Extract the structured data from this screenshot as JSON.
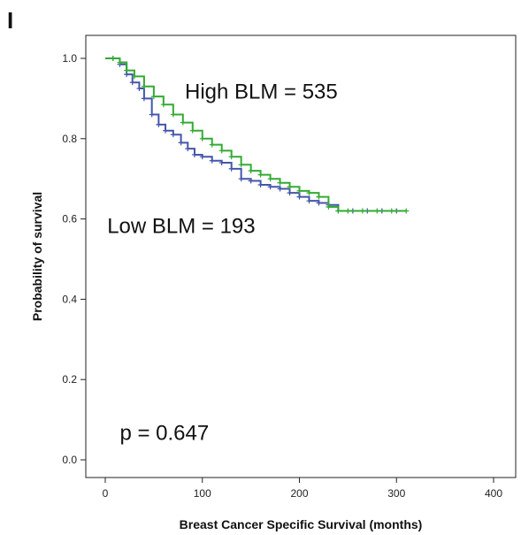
{
  "panel_label": "I",
  "chart_data": {
    "type": "line",
    "subtype": "kaplan-meier",
    "title": "",
    "xlabel": "Breast Cancer Specific Survival (months)",
    "ylabel": "Probability of survival",
    "xlim": [
      -20,
      400
    ],
    "ylim": [
      -0.02,
      1.05
    ],
    "xticks": [
      0,
      100,
      200,
      300,
      400
    ],
    "xtick_labels": [
      "0",
      "100",
      "200",
      "300",
      "400"
    ],
    "yticks": [
      0.0,
      0.2,
      0.4,
      0.6,
      0.8,
      1.0
    ],
    "ytick_labels": [
      "0.0",
      "0.2",
      "0.4",
      "0.6",
      "0.8",
      "1.0"
    ],
    "grid": false,
    "annotations": [
      {
        "text": "High BLM = 535",
        "x": 82,
        "y": 0.9,
        "color": "#111111"
      },
      {
        "text": "Low BLM = 193",
        "x": 2,
        "y": 0.565,
        "color": "#111111"
      },
      {
        "text": "p = 0.647",
        "x": 15,
        "y": 0.05,
        "color": "#111111"
      }
    ],
    "series": [
      {
        "color": "#4455aa",
        "x": [
          0,
          8,
          15,
          22,
          28,
          35,
          40,
          48,
          55,
          62,
          70,
          78,
          85,
          92,
          100,
          110,
          120,
          130,
          140,
          150,
          160,
          170,
          180,
          190,
          200,
          210,
          220,
          230,
          240,
          255,
          270,
          285,
          300
        ],
        "y": [
          1.0,
          1.0,
          0.985,
          0.96,
          0.94,
          0.925,
          0.9,
          0.86,
          0.835,
          0.82,
          0.81,
          0.79,
          0.775,
          0.76,
          0.755,
          0.745,
          0.74,
          0.725,
          0.7,
          0.695,
          0.685,
          0.68,
          0.675,
          0.665,
          0.655,
          0.645,
          0.64,
          0.635,
          0.62,
          0.62,
          0.62,
          0.62,
          0.62
        ]
      },
      {
        "color": "#33aa33",
        "x": [
          0,
          8,
          15,
          22,
          30,
          40,
          50,
          60,
          70,
          80,
          90,
          100,
          110,
          120,
          130,
          140,
          150,
          160,
          170,
          180,
          190,
          200,
          210,
          220,
          230,
          240,
          250,
          265,
          280,
          295,
          310
        ],
        "y": [
          1.0,
          1.0,
          0.99,
          0.97,
          0.955,
          0.93,
          0.905,
          0.885,
          0.86,
          0.84,
          0.82,
          0.8,
          0.785,
          0.77,
          0.755,
          0.735,
          0.72,
          0.71,
          0.7,
          0.69,
          0.68,
          0.67,
          0.665,
          0.655,
          0.63,
          0.62,
          0.62,
          0.62,
          0.62,
          0.62,
          0.62
        ]
      }
    ]
  }
}
